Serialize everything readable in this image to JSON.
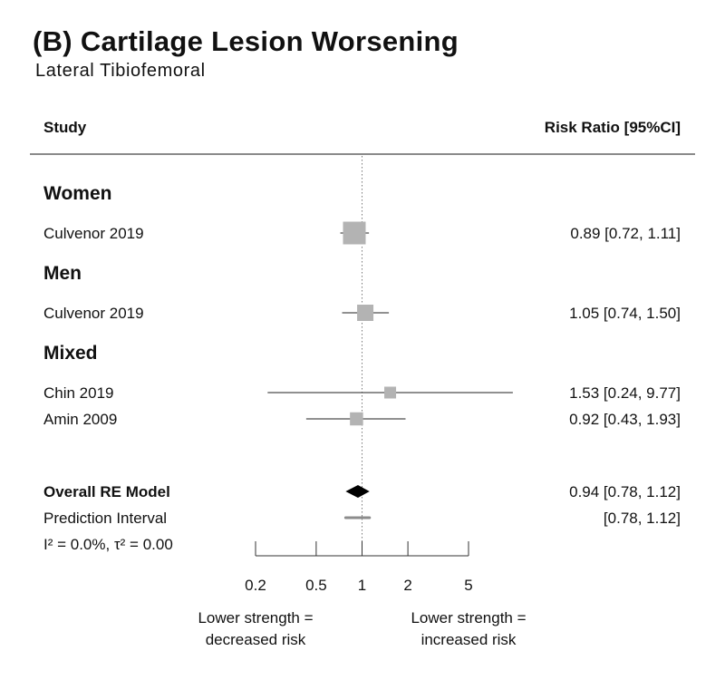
{
  "title": "(B) Cartilage Lesion Worsening",
  "subtitle": "Lateral Tibiofemoral",
  "chart_data": {
    "type": "forest",
    "scale": "log",
    "xlim": [
      0.2,
      5
    ],
    "reference_line": 1,
    "header_left": "Study",
    "header_right": "Risk Ratio [95%CI]",
    "groups": [
      {
        "label": "Women",
        "studies": [
          {
            "study": "Culvenor 2019",
            "rr": 0.89,
            "lo": 0.72,
            "hi": 1.11,
            "text": "0.89 [0.72, 1.11]",
            "weight": 1.0
          }
        ]
      },
      {
        "label": "Men",
        "studies": [
          {
            "study": "Culvenor 2019",
            "rr": 1.05,
            "lo": 0.74,
            "hi": 1.5,
            "text": "1.05 [0.74, 1.50]",
            "weight": 0.72
          }
        ]
      },
      {
        "label": "Mixed",
        "studies": [
          {
            "study": "Chin 2019",
            "rr": 1.53,
            "lo": 0.24,
            "hi": 9.77,
            "text": "1.53 [0.24, 9.77]",
            "weight": 0.52
          },
          {
            "study": "Amin 2009",
            "rr": 0.92,
            "lo": 0.43,
            "hi": 1.93,
            "text": "0.92 [0.43, 1.93]",
            "weight": 0.58
          }
        ]
      }
    ],
    "overall": {
      "label": "Overall RE Model",
      "rr": 0.94,
      "lo": 0.78,
      "hi": 1.12,
      "text": "0.94 [0.78, 1.12]"
    },
    "prediction": {
      "label": "Prediction Interval",
      "lo": 0.78,
      "hi": 1.12,
      "text": "[0.78, 1.12]"
    },
    "heterogeneity": "I² = 0.0%, τ² = 0.00",
    "x_ticks": [
      0.2,
      0.5,
      1,
      2,
      5
    ],
    "x_tick_labels": [
      "0.2",
      "0.5",
      "1",
      "2",
      "5"
    ],
    "left_note": [
      "Lower strength =",
      "decreased risk"
    ],
    "right_note": [
      "Lower strength =",
      "increased risk"
    ],
    "colors": {
      "box": "#b3b3b3",
      "diamond": "#000000",
      "prediction": "#8c8c8c",
      "rule": "#8a8a8a",
      "line": "#222222"
    }
  }
}
